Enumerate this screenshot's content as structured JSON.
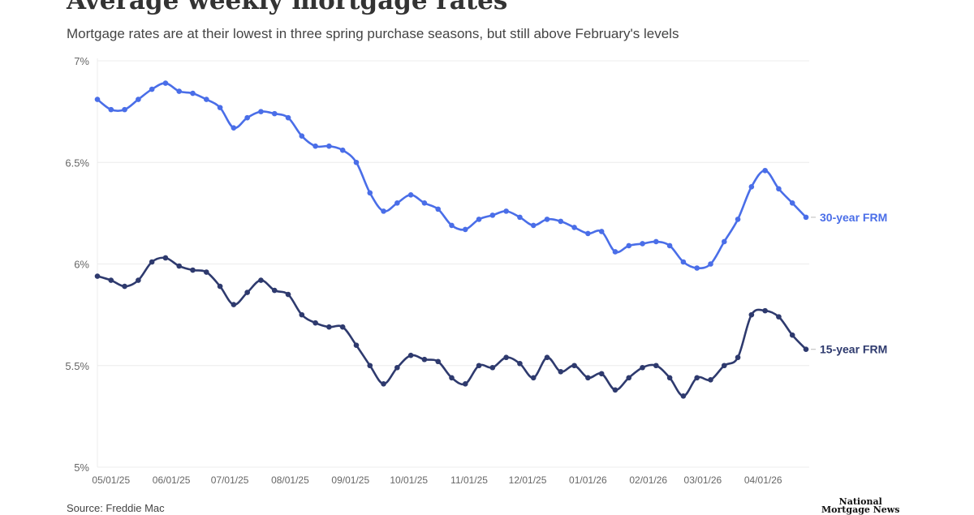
{
  "chart_data": {
    "type": "line",
    "title": "Average weekly mortgage rates",
    "subtitle": "Mortgage rates are at their lowest in three spring purchase seasons, but still above February's levels",
    "xlabel": "",
    "ylabel": "",
    "ylim": [
      5,
      7
    ],
    "yticks": [
      5,
      5.5,
      6,
      6.5,
      7
    ],
    "ytick_labels": [
      "5%",
      "5.5%",
      "6%",
      "6.5%",
      "7%"
    ],
    "xticks": [
      "2025-05-01",
      "2025-06-01",
      "2025-07-01",
      "2025-08-01",
      "2025-09-01",
      "2025-10-01",
      "2025-11-01",
      "2025-12-01",
      "2026-01-01",
      "2026-02-01",
      "2026-03-01",
      "2026-04-01"
    ],
    "xtick_labels": [
      "05/01/25",
      "06/01/25",
      "07/01/25",
      "08/01/25",
      "09/01/25",
      "10/01/25",
      "11/01/25",
      "12/01/25",
      "01/01/26",
      "02/01/26",
      "03/01/26",
      "04/01/26"
    ],
    "xlim": [
      "2025-04-24",
      "2026-04-23"
    ],
    "grid": true,
    "legend": "direct labels at line ends (right)",
    "x_start": "2025-04-24",
    "x_interval": "weekly",
    "series": [
      {
        "name": "30-year FRM",
        "color": "#4a6ee8",
        "values": [
          6.81,
          6.76,
          6.76,
          6.81,
          6.86,
          6.89,
          6.85,
          6.84,
          6.81,
          6.77,
          6.67,
          6.72,
          6.75,
          6.74,
          6.72,
          6.63,
          6.58,
          6.58,
          6.56,
          6.5,
          6.35,
          6.26,
          6.3,
          6.34,
          6.3,
          6.27,
          6.19,
          6.17,
          6.22,
          6.24,
          6.26,
          6.23,
          6.19,
          6.22,
          6.21,
          6.18,
          6.15,
          6.16,
          6.06,
          6.09,
          6.1,
          6.11,
          6.09,
          6.01,
          5.98,
          6.0,
          6.11,
          6.22,
          6.38,
          6.46,
          6.37,
          6.3,
          6.23
        ]
      },
      {
        "name": "15-year FRM",
        "color": "#2e3a6e",
        "values": [
          5.94,
          5.92,
          5.89,
          5.92,
          6.01,
          6.03,
          5.99,
          5.97,
          5.96,
          5.89,
          5.8,
          5.86,
          5.92,
          5.87,
          5.85,
          5.75,
          5.71,
          5.69,
          5.69,
          5.6,
          5.5,
          5.41,
          5.49,
          5.55,
          5.53,
          5.52,
          5.44,
          5.41,
          5.5,
          5.49,
          5.54,
          5.51,
          5.44,
          5.54,
          5.47,
          5.5,
          5.44,
          5.46,
          5.38,
          5.44,
          5.49,
          5.5,
          5.44,
          5.35,
          5.44,
          5.43,
          5.5,
          5.54,
          5.75,
          5.77,
          5.74,
          5.65,
          5.58
        ]
      }
    ]
  },
  "footer": {
    "source": "Source: Freddie Mac"
  },
  "logo": {
    "line1": "National",
    "line2": "Mortgage News"
  }
}
